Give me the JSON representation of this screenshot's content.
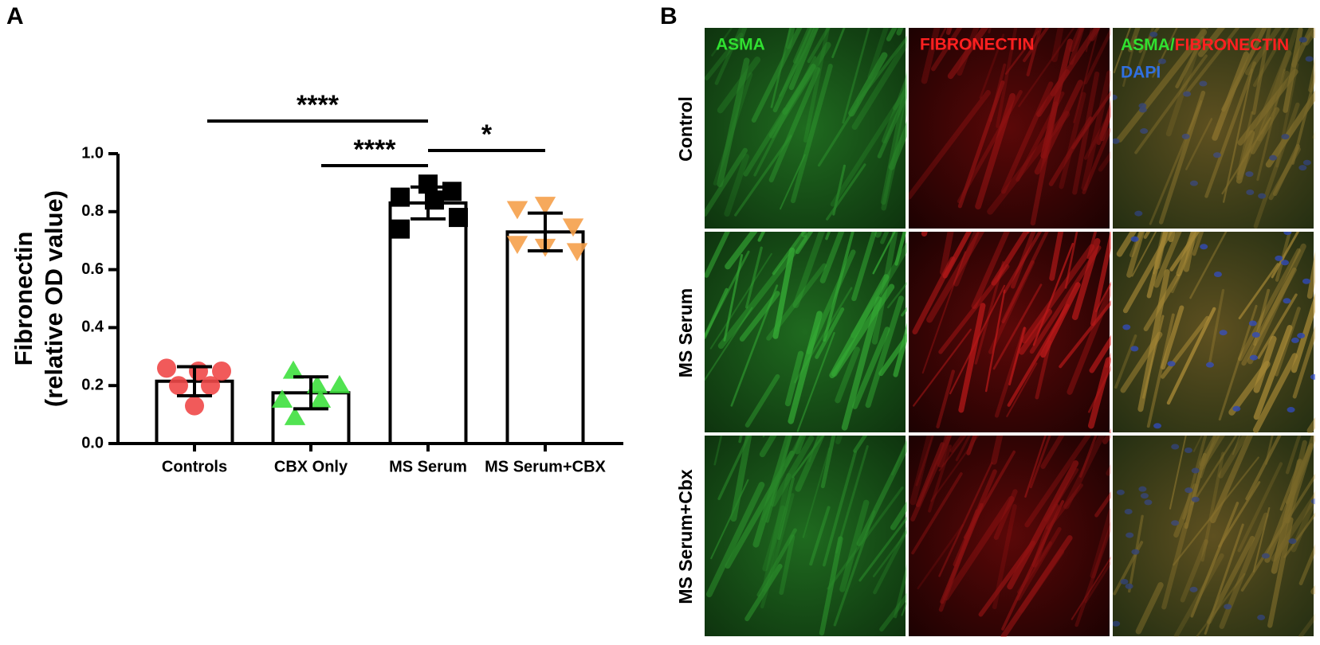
{
  "panel_a": {
    "label": "A"
  },
  "chart_data": {
    "type": "bar",
    "y_label": [
      "Fibronectin",
      "(relative OD value)"
    ],
    "categories": [
      "Controls",
      "CBX Only",
      "MS Serum",
      "MS Serum+CBX"
    ],
    "values": [
      0.215,
      0.175,
      0.83,
      0.73
    ],
    "errors": [
      0.05,
      0.055,
      0.055,
      0.065
    ],
    "points": [
      [
        0.26,
        0.25,
        0.25,
        0.2,
        0.2,
        0.13
      ],
      [
        0.25,
        0.2,
        0.2,
        0.15,
        0.15,
        0.09
      ],
      [
        0.895,
        0.87,
        0.85,
        0.84,
        0.78,
        0.74
      ],
      [
        0.825,
        0.81,
        0.75,
        0.69,
        0.68,
        0.665
      ]
    ],
    "colors": [
      "#f04848",
      "#3ee03e",
      "#000000",
      "#f5a04a"
    ],
    "markers": [
      "circle",
      "triangle-up",
      "square",
      "triangle-down"
    ],
    "ylim": [
      0,
      1.0
    ],
    "yticks": [
      {
        "value": 0,
        "label": "0.0"
      },
      {
        "value": 0.2,
        "label": "0.2"
      },
      {
        "value": 0.4,
        "label": "0.4"
      },
      {
        "value": 0.6,
        "label": "0.6"
      },
      {
        "value": 0.8,
        "label": "0.8"
      },
      {
        "value": 1.0,
        "label": "1.0"
      }
    ],
    "annotations": [
      "****",
      "****",
      "*"
    ]
  },
  "panel_b": {
    "label": "B",
    "columns": [
      "ASMA",
      "FIBRONECTIN"
    ],
    "merge_label": [
      "ASMA/",
      "FIBRONECTIN",
      "DAPI"
    ],
    "rows": [
      "Control",
      "MS Serum",
      "MS Serum+Cbx"
    ]
  }
}
